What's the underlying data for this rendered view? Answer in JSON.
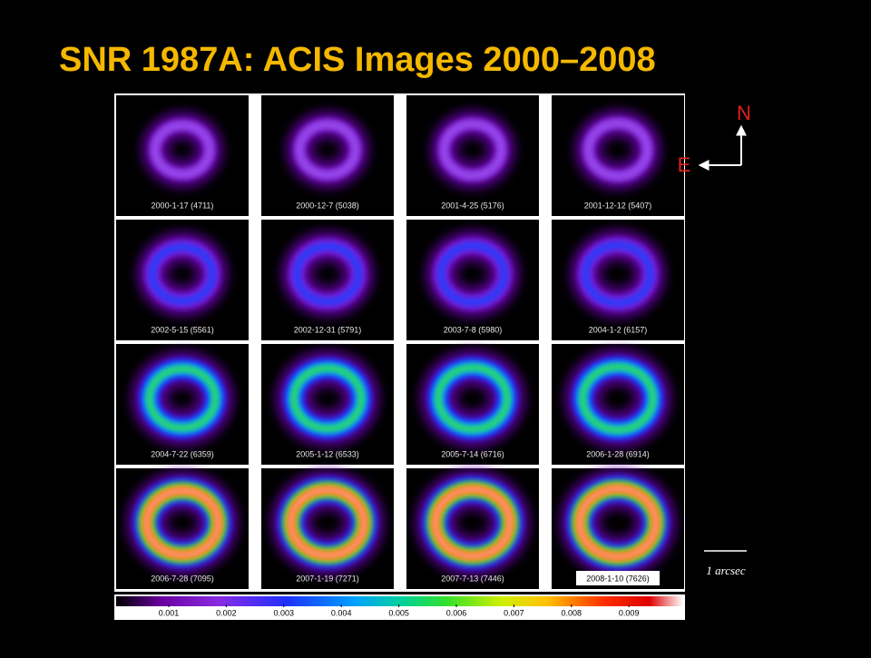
{
  "title": "SNR 1987A: ACIS Images 2000–2008",
  "panels": [
    "2000-1-17 (4711)",
    "2000-12-7 (5038)",
    "2001-4-25 (5176)",
    "2001-12-12 (5407)",
    "2002-5-15 (5561)",
    "2002-12-31 (5791)",
    "2003-7-8 (5980)",
    "2004-1-2 (6157)",
    "2004-7-22 (6359)",
    "2005-1-12 (6533)",
    "2005-7-14 (6716)",
    "2006-1-28 (6914)",
    "2006-7-28 (7095)",
    "2007-1-19 (7271)",
    "2007-7-13 (7446)",
    "2008-1-10 (7626)"
  ],
  "compass": {
    "north": "N",
    "east": "E"
  },
  "scale_bar": "1 arcsec",
  "colorbar_ticks": [
    "0.001",
    "0.002",
    "0.003",
    "0.004",
    "0.005",
    "0.006",
    "0.007",
    "0.008",
    "0.009"
  ]
}
